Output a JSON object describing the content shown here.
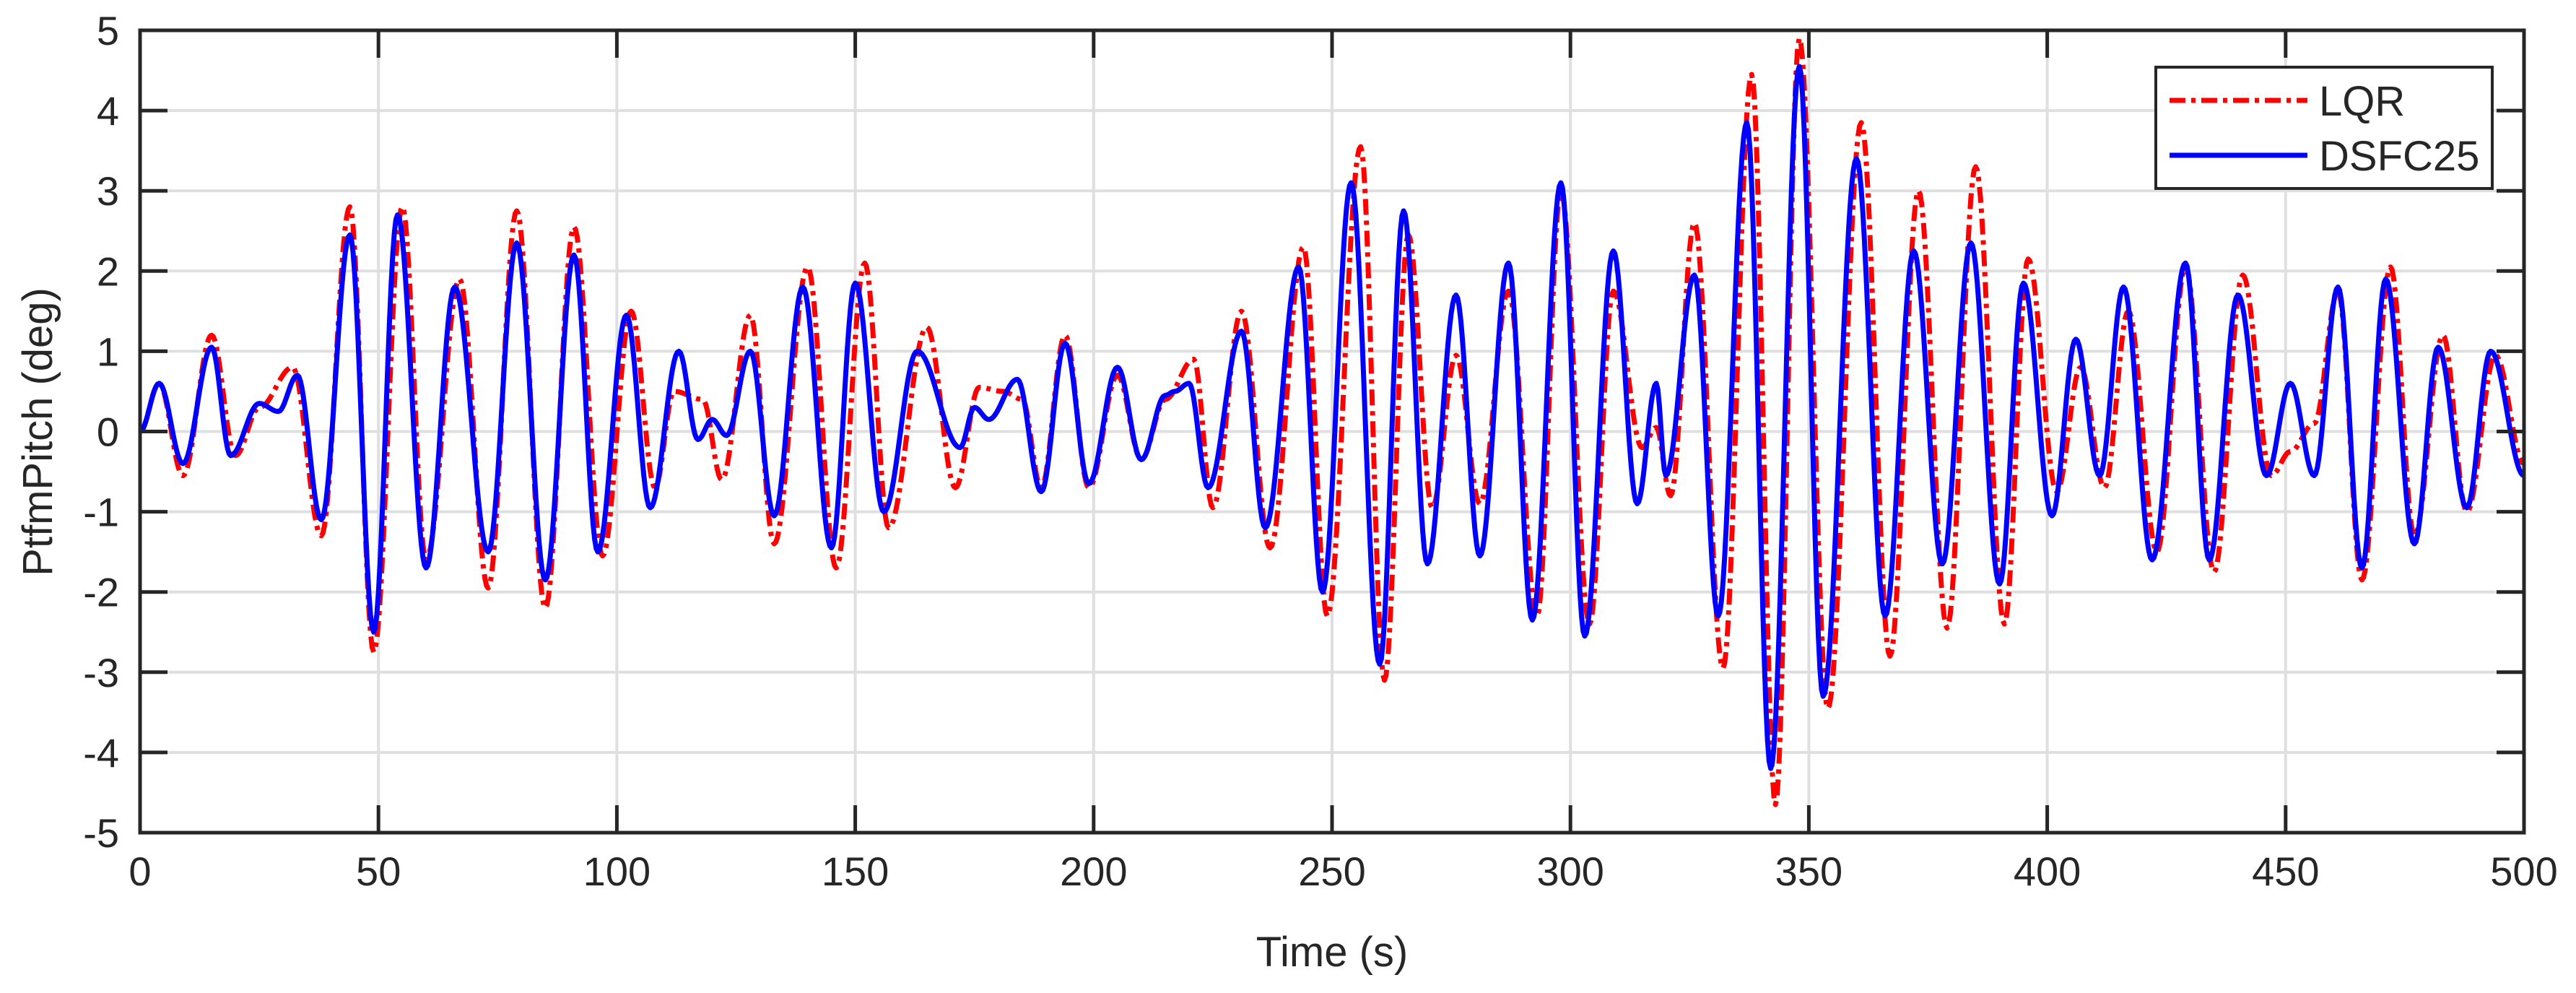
{
  "chart_data": {
    "type": "line",
    "title": "",
    "xlabel": "Time (s)",
    "ylabel": "PtfmPitch (deg)",
    "xlim": [
      0,
      500
    ],
    "ylim": [
      -5,
      5
    ],
    "xticks": [
      0,
      50,
      100,
      150,
      200,
      250,
      300,
      350,
      400,
      450,
      500
    ],
    "yticks": [
      -5,
      -4,
      -3,
      -2,
      -1,
      0,
      1,
      2,
      3,
      4,
      5
    ],
    "grid": true,
    "legend_position": "upper right",
    "series": [
      {
        "name": "LQR",
        "color": "#ff0000",
        "line_style": "dash-dot",
        "extrema_t": [
          0,
          4,
          9,
          15,
          20,
          25,
          32,
          38,
          44,
          49,
          55,
          60,
          67,
          73,
          79,
          85,
          91,
          97,
          103,
          108,
          112,
          118,
          122,
          128,
          133,
          140,
          146,
          152,
          157,
          165,
          171,
          176,
          181,
          185,
          189,
          194,
          199,
          205,
          210,
          215,
          221,
          225,
          231,
          237,
          244,
          249,
          256,
          261,
          266,
          271,
          276,
          281,
          287,
          293,
          298,
          304,
          309,
          315,
          318,
          321,
          326,
          332,
          338,
          343,
          348,
          354,
          361,
          367,
          373,
          379,
          385,
          391,
          396,
          402,
          407,
          412,
          417,
          423,
          429,
          435,
          441,
          447,
          451,
          456,
          461,
          466,
          472,
          477,
          483,
          488,
          494,
          500
        ],
        "extrema_v": [
          0,
          0.6,
          -0.55,
          1.2,
          -0.3,
          0.3,
          0.8,
          -1.3,
          2.8,
          -2.75,
          2.8,
          -1.6,
          1.9,
          -1.95,
          2.75,
          -2.2,
          2.55,
          -1.55,
          1.5,
          -0.7,
          0.5,
          0.4,
          -0.6,
          1.45,
          -1.4,
          2.05,
          -1.7,
          2.1,
          -1.2,
          1.3,
          -0.7,
          0.55,
          0.5,
          0.4,
          -0.7,
          1.2,
          -0.7,
          0.7,
          -0.35,
          0.4,
          0.9,
          -0.95,
          1.5,
          -1.45,
          2.3,
          -2.3,
          3.55,
          -3.1,
          2.45,
          -0.95,
          0.95,
          -0.9,
          1.75,
          -2.3,
          3.0,
          -2.4,
          1.75,
          -0.2,
          0.05,
          -0.8,
          2.6,
          -2.95,
          4.45,
          -4.65,
          4.9,
          -3.45,
          3.85,
          -2.8,
          3.0,
          -2.45,
          3.3,
          -2.4,
          2.15,
          -0.75,
          0.8,
          -0.7,
          1.5,
          -1.5,
          2.05,
          -1.75,
          1.95,
          -0.55,
          -0.25,
          0.1,
          1.75,
          -1.85,
          2.05,
          -1.3,
          1.2,
          -1.0,
          0.95,
          -0.4
        ]
      },
      {
        "name": "DSFC25",
        "color": "#0000ff",
        "line_style": "solid",
        "extrema_t": [
          0,
          4,
          9,
          15,
          19,
          25,
          29,
          33,
          38,
          44,
          49,
          54,
          60,
          66,
          73,
          79,
          85,
          91,
          96,
          102,
          107,
          113,
          117,
          120,
          123,
          128,
          133,
          139,
          145,
          150,
          156,
          163,
          172,
          175,
          178,
          184,
          189,
          194,
          199,
          205,
          210,
          215,
          217,
          220,
          224,
          231,
          236,
          243,
          248,
          254,
          260,
          265,
          270,
          276,
          281,
          287,
          292,
          298,
          303,
          309,
          314,
          318,
          320,
          326,
          331,
          337,
          342,
          348,
          353,
          360,
          366,
          372,
          378,
          384,
          390,
          395,
          401,
          406,
          411,
          416,
          422,
          429,
          434,
          440,
          446,
          451,
          456,
          461,
          466,
          471,
          477,
          482,
          488,
          493,
          500
        ],
        "extrema_v": [
          0,
          0.6,
          -0.4,
          1.05,
          -0.3,
          0.35,
          0.25,
          0.7,
          -1.1,
          2.45,
          -2.5,
          2.7,
          -1.7,
          1.8,
          -1.5,
          2.35,
          -1.85,
          2.2,
          -1.5,
          1.45,
          -0.95,
          1.0,
          -0.1,
          0.15,
          -0.05,
          1.0,
          -1.05,
          1.8,
          -1.45,
          1.85,
          -1.0,
          1.0,
          -0.2,
          0.3,
          0.15,
          0.65,
          -0.75,
          1.1,
          -0.65,
          0.8,
          -0.35,
          0.45,
          0.5,
          0.6,
          -0.7,
          1.25,
          -1.2,
          2.05,
          -2.0,
          3.1,
          -2.9,
          2.75,
          -1.65,
          1.7,
          -1.55,
          2.1,
          -2.35,
          3.1,
          -2.55,
          2.25,
          -0.9,
          0.6,
          -0.55,
          1.95,
          -2.3,
          3.85,
          -4.2,
          4.55,
          -3.3,
          3.4,
          -2.3,
          2.25,
          -1.65,
          2.35,
          -1.9,
          1.85,
          -1.05,
          1.15,
          -0.55,
          1.8,
          -1.6,
          2.1,
          -1.6,
          1.7,
          -0.55,
          0.6,
          -0.55,
          1.8,
          -1.7,
          1.9,
          -1.4,
          1.05,
          -0.95,
          1.0,
          -0.55
        ]
      }
    ]
  },
  "axes": {
    "xlabel": "Time (s)",
    "ylabel": "PtfmPitch (deg)",
    "xtick_labels": [
      "0",
      "50",
      "100",
      "150",
      "200",
      "250",
      "300",
      "350",
      "400",
      "450",
      "500"
    ],
    "ytick_labels": [
      "5",
      "4",
      "3",
      "2",
      "1",
      "0",
      "-1",
      "-2",
      "-3",
      "-4",
      "-5"
    ]
  },
  "legend": {
    "items": [
      {
        "label": "LQR",
        "color": "#ff0000"
      },
      {
        "label": "DSFC25",
        "color": "#0000ff"
      }
    ]
  },
  "colors": {
    "axis": "#262626",
    "grid": "#dfdfdf",
    "background": "#ffffff"
  }
}
